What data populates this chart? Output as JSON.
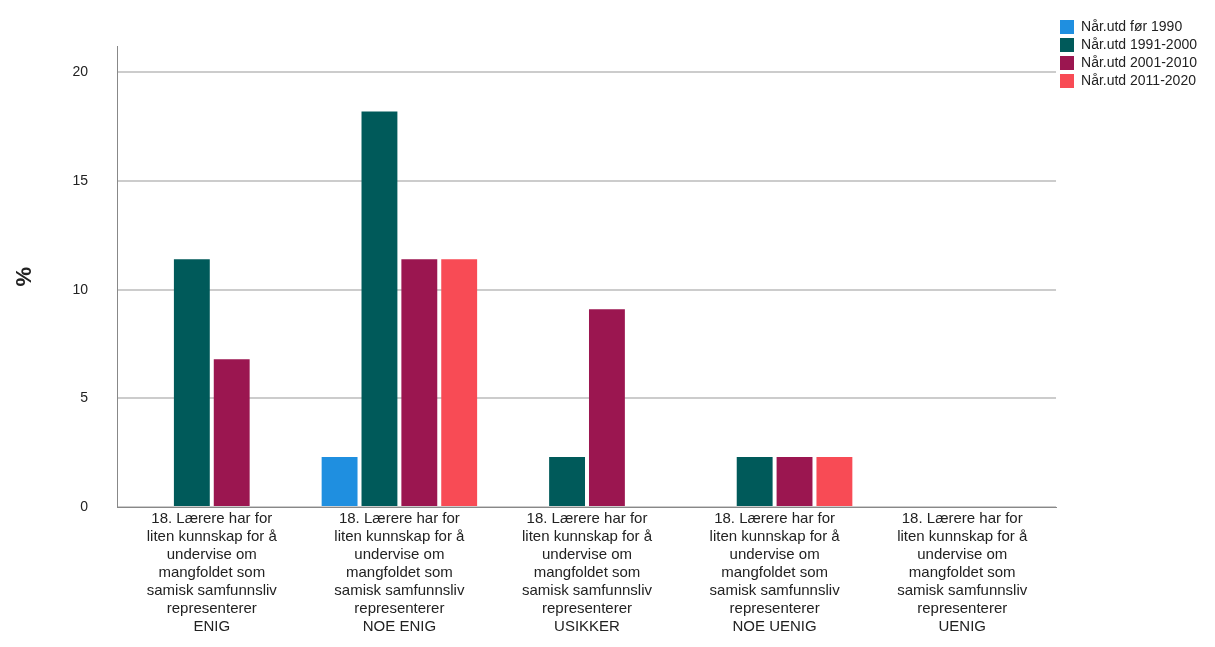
{
  "chart_data": {
    "type": "bar",
    "ylabel": "%",
    "categories": [
      "18. Lærere har for\nliten kunnskap for å\nundervise om\nmangfoldet som\nsamisk samfunnsliv\nrepresenterer\nENIG",
      "18. Lærere har for\nliten kunnskap for å\nundervise om\nmangfoldet som\nsamisk samfunnsliv\nrepresenterer\nNOE ENIG",
      "18. Lærere har for\nliten kunnskap for å\nundervise om\nmangfoldet som\nsamisk samfunnsliv\nrepresenterer\nUSIKKER",
      "18. Lærere har for\nliten kunnskap for å\nundervise om\nmangfoldet som\nsamisk samfunnsliv\nrepresenterer\nNOE UENIG",
      "18. Lærere har for\nliten kunnskap for å\nundervise om\nmangfoldet som\nsamisk samfunnsliv\nrepresenterer\nUENIG"
    ],
    "series": [
      {
        "name": "Når.utd før 1990",
        "color": "#1f8fe0",
        "values": [
          0,
          2.3,
          0,
          0,
          0
        ]
      },
      {
        "name": "Når.utd 1991-2000",
        "color": "#005a5a",
        "values": [
          11.4,
          18.2,
          2.3,
          2.3,
          0
        ]
      },
      {
        "name": "Når.utd 2001-2010",
        "color": "#9b1650",
        "values": [
          6.8,
          11.4,
          9.1,
          2.3,
          0
        ]
      },
      {
        "name": "Når.utd 2011-2020",
        "color": "#f84b55",
        "values": [
          0,
          11.4,
          0,
          2.3,
          0
        ]
      }
    ],
    "ylim": [
      0,
      21.2
    ],
    "yticks": [
      0,
      5,
      10,
      15,
      20
    ],
    "grid": "y",
    "legend": "top right"
  }
}
